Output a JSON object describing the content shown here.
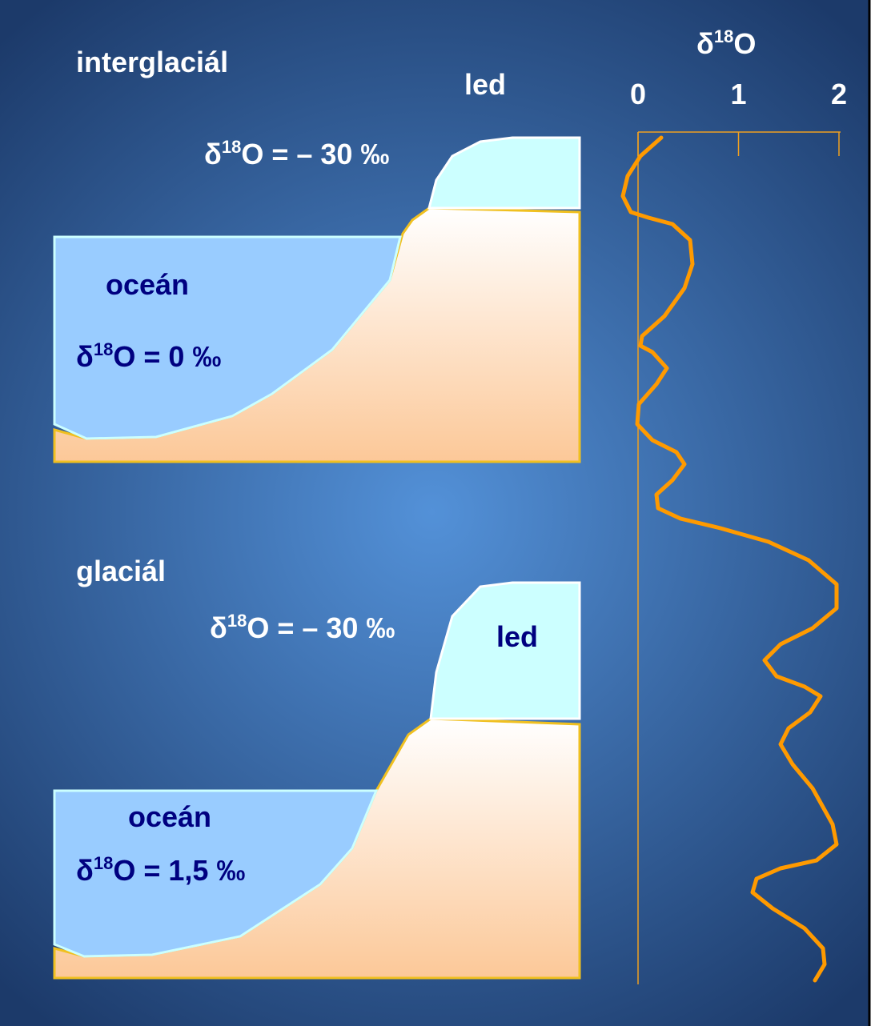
{
  "top": {
    "label": "interglaciál",
    "ice_label": "led",
    "ice_isotope": {
      "symbol": "δ",
      "sup": "18",
      "text": "O = – 30 ‰"
    },
    "ocean_label": "oceán",
    "ocean_isotope": {
      "symbol": "δ",
      "sup": "18",
      "text": "O = 0 ‰"
    }
  },
  "bottom": {
    "label": "glaciál",
    "ice_label": "led",
    "ice_isotope": {
      "symbol": "δ",
      "sup": "18",
      "text": "O = – 30 ‰"
    },
    "ocean_label": "oceán",
    "ocean_isotope": {
      "symbol": "δ",
      "sup": "18",
      "text": "O = 1,5 ‰"
    }
  },
  "graph": {
    "title": {
      "symbol": "δ",
      "sup": "18",
      "text": "O"
    },
    "ticks": [
      0,
      1,
      2
    ]
  }
}
